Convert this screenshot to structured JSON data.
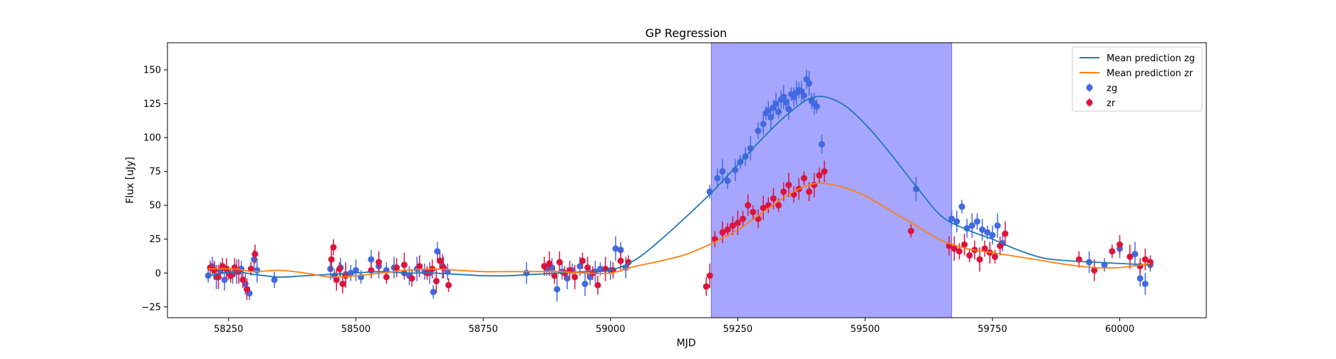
{
  "chart_data": {
    "type": "scatter",
    "title": "GP Regression",
    "xlabel": "MJD",
    "ylabel": "Flux [uJy]",
    "xlim": [
      58130,
      60170
    ],
    "ylim": [
      -33,
      170
    ],
    "xticks": [
      58250,
      58500,
      58750,
      59000,
      59250,
      59500,
      59750,
      60000
    ],
    "yticks": [
      -25,
      0,
      25,
      50,
      75,
      100,
      125,
      150
    ],
    "grid": false,
    "legend_position": "top-right",
    "shaded_region": {
      "x_start": 59198,
      "x_end": 59670,
      "color": "#a6a6ff"
    },
    "series": [
      {
        "name": "Mean prediction zg",
        "kind": "line",
        "color": "#1f77b4",
        "x": [
          58210,
          58260,
          58300,
          58350,
          58400,
          58450,
          58500,
          58550,
          58600,
          58650,
          58700,
          58750,
          58800,
          58850,
          58900,
          58950,
          59000,
          59050,
          59100,
          59150,
          59200,
          59250,
          59300,
          59350,
          59400,
          59450,
          59500,
          59550,
          59600,
          59650,
          59700,
          59750,
          59800,
          59850,
          59900,
          59950,
          60000,
          60060
        ],
        "y": [
          -2,
          1,
          -1,
          -3,
          -2,
          -1,
          0,
          1,
          0,
          0,
          -1,
          -2,
          -2,
          -1,
          0,
          1,
          2,
          10,
          25,
          42,
          60,
          80,
          100,
          118,
          130,
          126,
          110,
          88,
          64,
          42,
          32,
          25,
          17,
          11,
          9,
          8,
          7,
          6
        ]
      },
      {
        "name": "Mean prediction zr",
        "kind": "line",
        "color": "#ff7f0e",
        "x": [
          58210,
          58260,
          58300,
          58350,
          58400,
          58450,
          58500,
          58550,
          58600,
          58650,
          58700,
          58750,
          58800,
          58850,
          58900,
          58950,
          59000,
          59050,
          59100,
          59150,
          59200,
          59250,
          59300,
          59350,
          59400,
          59450,
          59500,
          59550,
          59600,
          59650,
          59700,
          59750,
          59800,
          59850,
          59900,
          59950,
          60000,
          60060
        ],
        "y": [
          3,
          3,
          1,
          2,
          0,
          -3,
          -2,
          0,
          2,
          3,
          2,
          1,
          1,
          1,
          1,
          0,
          0,
          5,
          9,
          14,
          22,
          32,
          45,
          58,
          66,
          64,
          57,
          46,
          35,
          24,
          18,
          15,
          12,
          9,
          6,
          4,
          4,
          7
        ]
      },
      {
        "name": "zg",
        "kind": "points",
        "color": "#4169e1",
        "x": [
          58210,
          58218,
          58226,
          58234,
          58242,
          58250,
          58258,
          58266,
          58275,
          58283,
          58291,
          58300,
          58306,
          58340,
          58450,
          58458,
          58470,
          58480,
          58490,
          58500,
          58510,
          58530,
          58545,
          58560,
          58575,
          58595,
          58605,
          58620,
          58635,
          58645,
          58652,
          58660,
          58670,
          58680,
          58835,
          58875,
          58885,
          58895,
          58905,
          58915,
          58925,
          58940,
          58950,
          58960,
          58970,
          58980,
          59000,
          59010,
          59020,
          59030,
          59195,
          59210,
          59220,
          59230,
          59245,
          59255,
          59265,
          59275,
          59290,
          59300,
          59305,
          59310,
          59315,
          59320,
          59325,
          59330,
          59335,
          59340,
          59345,
          59350,
          59355,
          59360,
          59365,
          59370,
          59375,
          59380,
          59385,
          59390,
          59395,
          59400,
          59405,
          59415,
          59600,
          59670,
          59680,
          59690,
          59700,
          59710,
          59720,
          59730,
          59740,
          59750,
          59760,
          59770,
          59940,
          59970,
          60000,
          60030,
          60040,
          60050,
          60060
        ],
        "y": [
          -2,
          5,
          -3,
          2,
          -5,
          0,
          -1,
          1,
          3,
          -8,
          -15,
          10,
          2,
          -5,
          3,
          -2,
          4,
          -1,
          0,
          2,
          -3,
          10,
          5,
          2,
          4,
          0,
          -2,
          3,
          1,
          0,
          -14,
          16,
          5,
          1,
          0,
          3,
          4,
          -12,
          1,
          -4,
          2,
          5,
          -8,
          -3,
          1,
          3,
          2,
          18,
          17,
          4,
          60,
          70,
          75,
          68,
          76,
          82,
          86,
          92,
          105,
          110,
          118,
          120,
          115,
          122,
          125,
          119,
          128,
          130,
          126,
          121,
          132,
          130,
          133,
          135,
          134,
          131,
          143,
          140,
          127,
          125,
          123,
          95,
          62,
          40,
          38,
          49,
          33,
          35,
          38,
          32,
          30,
          28,
          35,
          22,
          8,
          6,
          18,
          14,
          -4,
          -8,
          6
        ]
      },
      {
        "name": "zr",
        "kind": "points",
        "color": "#dc143c",
        "x": [
          58214,
          58222,
          58230,
          58238,
          58246,
          58254,
          58262,
          58270,
          58278,
          58286,
          58294,
          58302,
          58452,
          58456,
          58462,
          58468,
          58474,
          58480,
          58530,
          58545,
          58560,
          58580,
          58595,
          58610,
          58625,
          58640,
          58650,
          58658,
          58665,
          58672,
          58682,
          58870,
          58880,
          58890,
          58900,
          58910,
          58920,
          58930,
          58945,
          58955,
          58965,
          58975,
          58990,
          59005,
          59020,
          59035,
          59188,
          59195,
          59205,
          59220,
          59230,
          59240,
          59250,
          59260,
          59270,
          59280,
          59290,
          59300,
          59310,
          59320,
          59330,
          59340,
          59350,
          59360,
          59370,
          59380,
          59390,
          59400,
          59410,
          59420,
          59590,
          59665,
          59675,
          59685,
          59695,
          59705,
          59715,
          59725,
          59735,
          59745,
          59755,
          59765,
          59775,
          59920,
          59950,
          59985,
          60000,
          60020,
          60040,
          60050,
          60060
        ],
        "y": [
          4,
          2,
          -3,
          5,
          3,
          -2,
          4,
          1,
          -5,
          -12,
          3,
          14,
          10,
          19,
          -5,
          3,
          -8,
          -2,
          2,
          8,
          -3,
          4,
          6,
          -4,
          5,
          0,
          3,
          -6,
          9,
          4,
          -9,
          5,
          7,
          -2,
          8,
          0,
          2,
          -3,
          9,
          4,
          0,
          -9,
          3,
          2,
          9,
          8,
          -10,
          -2,
          25,
          30,
          32,
          35,
          37,
          40,
          50,
          45,
          40,
          48,
          50,
          55,
          50,
          60,
          65,
          58,
          62,
          70,
          60,
          65,
          72,
          75,
          31,
          20,
          18,
          16,
          21,
          13,
          17,
          10,
          18,
          15,
          12,
          20,
          29,
          10,
          2,
          16,
          21,
          12,
          5,
          10,
          8
        ]
      }
    ]
  }
}
